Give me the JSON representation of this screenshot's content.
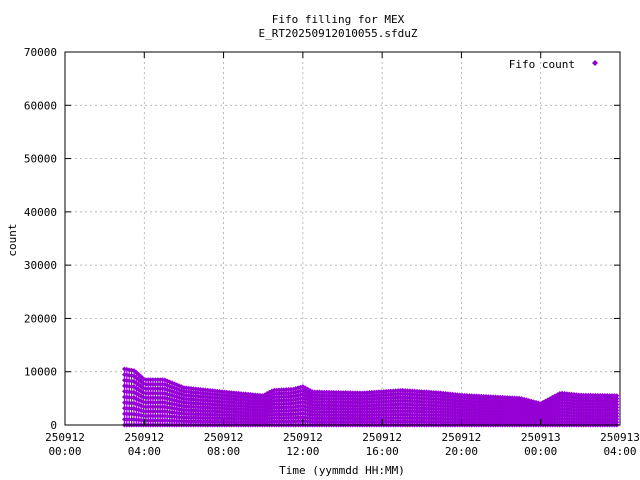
{
  "chart_data": {
    "type": "scatter",
    "title": "Fifo filling for MEX",
    "subtitle": "E_RT20250912010055.sfduZ",
    "xlabel": "Time (yymmdd HH:MM)",
    "ylabel": "count",
    "xlim_hours": [
      0,
      28
    ],
    "ylim": [
      0,
      70000
    ],
    "grid": true,
    "legend_position": "top-right",
    "y_ticks": [
      "0",
      "10000",
      "20000",
      "30000",
      "40000",
      "50000",
      "60000",
      "70000"
    ],
    "x_ticks": [
      {
        "date": "250912",
        "time": "00:00"
      },
      {
        "date": "250912",
        "time": "04:00"
      },
      {
        "date": "250912",
        "time": "08:00"
      },
      {
        "date": "250912",
        "time": "12:00"
      },
      {
        "date": "250912",
        "time": "16:00"
      },
      {
        "date": "250912",
        "time": "20:00"
      },
      {
        "date": "250913",
        "time": "00:00"
      },
      {
        "date": "250913",
        "time": "04:00"
      }
    ],
    "series": [
      {
        "name": "Fifo count",
        "color": "#9400d3",
        "x_start_hours": 3.0,
        "x_end_hours": 27.85,
        "envelope_max": [
          [
            3.0,
            10500
          ],
          [
            3.5,
            10200
          ],
          [
            4.0,
            8500
          ],
          [
            5.0,
            8500
          ],
          [
            6.0,
            7000
          ],
          [
            8.0,
            6200
          ],
          [
            10.0,
            5500
          ],
          [
            10.5,
            6500
          ],
          [
            11.5,
            6700
          ],
          [
            12.0,
            7200
          ],
          [
            12.5,
            6200
          ],
          [
            15.0,
            6000
          ],
          [
            17.0,
            6500
          ],
          [
            19.0,
            6000
          ],
          [
            20.0,
            5600
          ],
          [
            23.0,
            5000
          ],
          [
            24.0,
            4000
          ],
          [
            25.0,
            6000
          ],
          [
            26.0,
            5600
          ],
          [
            27.85,
            5500
          ]
        ],
        "bands": 10
      }
    ]
  }
}
